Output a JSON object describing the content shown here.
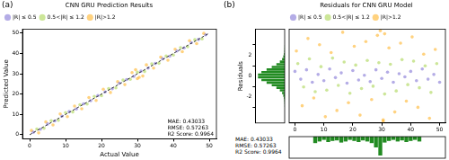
{
  "chart_data": [
    {
      "type": "scatter",
      "panel_label": "(a)",
      "title": "CNN GRU Prediction Results",
      "x_label": "Actual Value",
      "y_label": "Predicted Value",
      "xlim": [
        -2,
        52
      ],
      "ylim": [
        -2,
        52
      ],
      "xticks": [
        0,
        10,
        20,
        30,
        40,
        50
      ],
      "yticks": [
        0,
        10,
        20,
        30,
        40,
        50
      ],
      "grid": false,
      "legend": "upper left",
      "series": [
        {
          "name": "|R| ≤ 0.5",
          "color": "#6a5acd",
          "marker": "circle",
          "x": [
            1,
            3,
            5,
            7,
            9,
            11,
            13,
            15,
            17,
            19,
            21,
            23,
            25,
            27,
            29,
            31,
            33,
            35,
            37,
            39,
            41,
            43,
            45,
            47,
            49
          ],
          "values": [
            1.2,
            2.7,
            5.3,
            6.8,
            9.1,
            11.4,
            12.7,
            15.2,
            16.8,
            19.3,
            21.1,
            22.6,
            25.4,
            27.2,
            28.7,
            31.3,
            32.8,
            35.1,
            37.4,
            38.7,
            41.2,
            42.8,
            45.3,
            46.9,
            49.2
          ]
        },
        {
          "name": "0.5<|R| ≤ 1.2",
          "color": "#9acd32",
          "marker": "circle",
          "x": [
            2,
            4,
            6,
            8,
            10,
            12,
            14,
            16,
            18,
            20,
            22,
            24,
            26,
            28,
            30,
            32,
            34,
            36,
            38,
            40,
            42,
            44,
            46,
            48
          ],
          "values": [
            2.8,
            3.2,
            6.9,
            7.1,
            10.9,
            11.2,
            14.8,
            15.1,
            18.9,
            19.2,
            22.7,
            23.1,
            26.9,
            27.3,
            30.8,
            31.1,
            34.9,
            35.2,
            38.8,
            39.2,
            42.9,
            43.3,
            46.8,
            47.2
          ]
        },
        {
          "name": "|R|>1.2",
          "color": "#ffa500",
          "marker": "circle",
          "x": [
            0.5,
            2.5,
            4.5,
            6.5,
            8.5,
            10.5,
            12.5,
            14.5,
            16.5,
            18.5,
            20.5,
            22.5,
            24.5,
            26.5,
            28.5,
            30.5,
            32.5,
            34.5,
            36.5,
            38.5,
            40.5,
            42.5,
            44.5,
            46.5,
            48.5,
            29.5,
            31.5,
            30
          ],
          "values": [
            2.1,
            0.9,
            6.3,
            4.8,
            10.2,
            8.9,
            14.1,
            12.8,
            18.3,
            16.9,
            22.4,
            20.8,
            26.1,
            24.7,
            30.6,
            28.3,
            34.4,
            32.8,
            38.2,
            36.7,
            42.1,
            40.9,
            46.3,
            44.9,
            49.9,
            32.0,
            28.9,
            27.6
          ]
        }
      ],
      "reference_line": {
        "x": [
          0,
          50
        ],
        "values": [
          0,
          50
        ],
        "color": "#000000",
        "line_style": "dashed"
      },
      "annotations": [
        "MAE: 0.43033",
        "RMSE: 0.57263",
        "R2 Score: 0.9964"
      ]
    },
    {
      "type": "histogram",
      "panel_label": "(b)",
      "orientation": "horizontal",
      "y_label": "Residuals",
      "xlim": [
        0,
        1700
      ],
      "ylim": [
        -3,
        3
      ],
      "yticks": [
        -2,
        0,
        2
      ],
      "tick_labels": "y",
      "color": "#228b22",
      "bins": [
        -3,
        -2.75,
        -2.5,
        -2.25,
        -2,
        -1.75,
        -1.5,
        -1.25,
        -1,
        -0.75,
        -0.5,
        -0.25,
        0,
        0.25,
        0.5,
        0.75,
        1,
        1.25,
        1.5,
        1.75,
        2,
        2.25,
        2.5,
        2.75,
        3
      ],
      "counts": [
        5,
        10,
        20,
        40,
        80,
        150,
        280,
        480,
        750,
        1050,
        1350,
        1550,
        1550,
        1350,
        1050,
        750,
        480,
        280,
        150,
        80,
        40,
        20,
        10,
        5
      ],
      "annotations": [
        "MAE: 0.43033",
        "RMSE: 0.57263",
        "R2 Score: 0.9964"
      ]
    },
    {
      "type": "scatter",
      "title": "Residuals for CNN GRU Model",
      "xlim": [
        -2,
        52
      ],
      "ylim": [
        -3,
        3
      ],
      "xticks": [
        0,
        10,
        20,
        30,
        40,
        50
      ],
      "tick_labels": "x",
      "grid": false,
      "legend": "upper left",
      "series": [
        {
          "name": "|R| ≤ 0.5",
          "color": "#6a5acd",
          "marker": "circle",
          "x": [
            0,
            2,
            4,
            6,
            8,
            10,
            12,
            14,
            16,
            18,
            20,
            22,
            24,
            26,
            28,
            30,
            32,
            34,
            36,
            38,
            40,
            42,
            44,
            46,
            48,
            50
          ],
          "values": [
            0.3,
            -0.2,
            0.4,
            -0.4,
            0.1,
            -0.3,
            0.45,
            -0.1,
            0.2,
            -0.45,
            0.35,
            -0.25,
            0.05,
            -0.35,
            0.4,
            -0.15,
            0.25,
            -0.4,
            0.15,
            -0.05,
            0.3,
            -0.3,
            0.45,
            -0.2,
            0.1,
            -0.4
          ]
        },
        {
          "name": "0.5<|R| ≤ 1.2",
          "color": "#9acd32",
          "marker": "circle",
          "x": [
            1,
            3,
            5,
            7,
            9,
            11,
            13,
            15,
            17,
            19,
            21,
            23,
            25,
            27,
            29,
            31,
            33,
            35,
            37,
            39,
            41,
            43,
            45,
            47,
            49
          ],
          "values": [
            0.8,
            -0.7,
            1.1,
            -1.0,
            0.6,
            -0.9,
            1.15,
            -0.6,
            0.9,
            -1.1,
            0.7,
            -0.8,
            1.0,
            -0.65,
            0.85,
            -1.15,
            0.75,
            -0.95,
            1.05,
            -0.55,
            0.95,
            -0.75,
            0.65,
            -1.05,
            0.8
          ]
        },
        {
          "name": "|R|>1.2",
          "color": "#ffa500",
          "marker": "circle",
          "x": [
            0.5,
            2.5,
            4.5,
            6.5,
            8.5,
            10.5,
            12.5,
            14.5,
            16.5,
            18.5,
            20.5,
            22.5,
            24.5,
            26.5,
            28.5,
            30.5,
            32.5,
            34.5,
            36.5,
            38.5,
            40.5,
            42.5,
            44.5,
            46.5,
            48.5,
            29.5,
            30.5,
            31
          ],
          "values": [
            1.6,
            -1.9,
            2.4,
            -1.4,
            2.0,
            -2.6,
            1.5,
            -2.2,
            2.8,
            -1.7,
            1.9,
            -2.5,
            2.2,
            -1.5,
            2.6,
            -2.9,
            1.8,
            -2.3,
            2.1,
            -1.6,
            2.5,
            -2.0,
            1.4,
            -2.7,
            1.7,
            2.9,
            -2.8,
            2.7
          ]
        }
      ]
    },
    {
      "type": "histogram",
      "xlim": [
        -2,
        52
      ],
      "ylim": [
        0,
        400
      ],
      "tick_labels": false,
      "color": "#228b22",
      "bins": [
        0,
        2,
        4,
        6,
        8,
        10,
        12,
        14,
        16,
        18,
        20,
        22,
        24,
        26,
        28,
        30,
        32,
        34,
        36,
        38,
        40,
        42,
        44,
        46,
        48,
        50
      ],
      "counts": [
        120,
        90,
        60,
        100,
        80,
        70,
        110,
        90,
        60,
        80,
        100,
        70,
        90,
        120,
        200,
        350,
        110,
        80,
        60,
        90,
        70,
        100,
        80,
        60,
        90
      ]
    }
  ]
}
